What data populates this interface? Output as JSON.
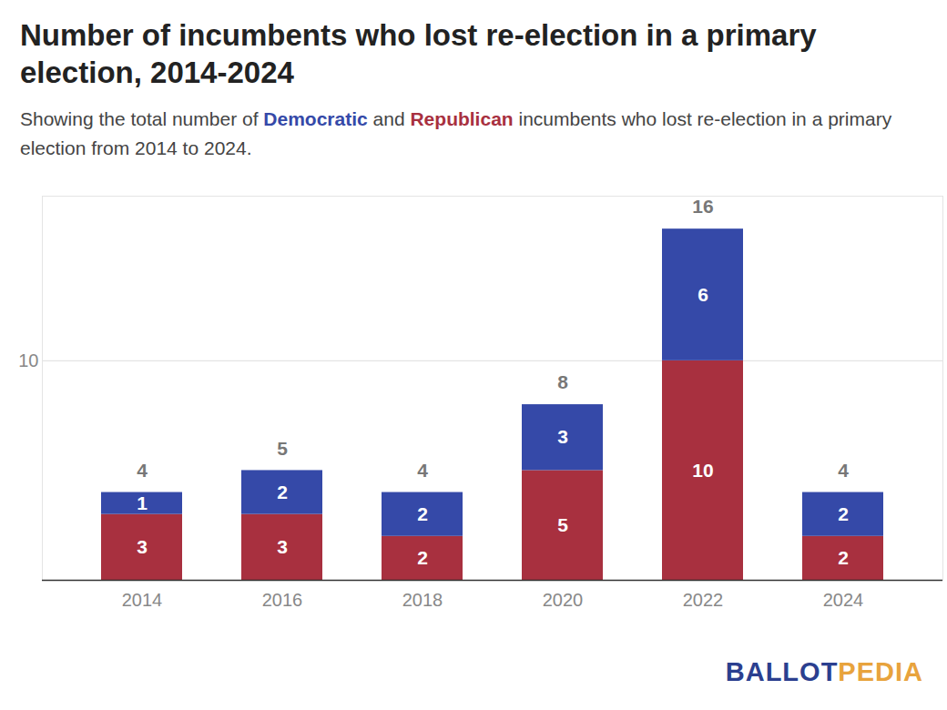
{
  "chart_data": {
    "type": "bar",
    "title": "Number of incumbents who lost re-election in a primary election, 2014-2024",
    "subtitle": "Showing the total number of Democratic and Republican incumbents who lost re-election in a primary election from 2014 to 2024.",
    "categories": [
      "2014",
      "2016",
      "2018",
      "2020",
      "2022",
      "2024"
    ],
    "series": [
      {
        "name": "Republican",
        "color": "#a8303f",
        "values": [
          3,
          3,
          2,
          5,
          10,
          2
        ]
      },
      {
        "name": "Democratic",
        "color": "#3549a8",
        "values": [
          1,
          2,
          2,
          3,
          6,
          2
        ]
      }
    ],
    "totals": [
      4,
      5,
      4,
      8,
      16,
      4
    ],
    "stacked": true,
    "data_labels": true,
    "ylim": [
      0,
      17.5
    ],
    "yticks": [
      10
    ],
    "grid": true,
    "credit": "BALLOTPEDIA"
  }
}
